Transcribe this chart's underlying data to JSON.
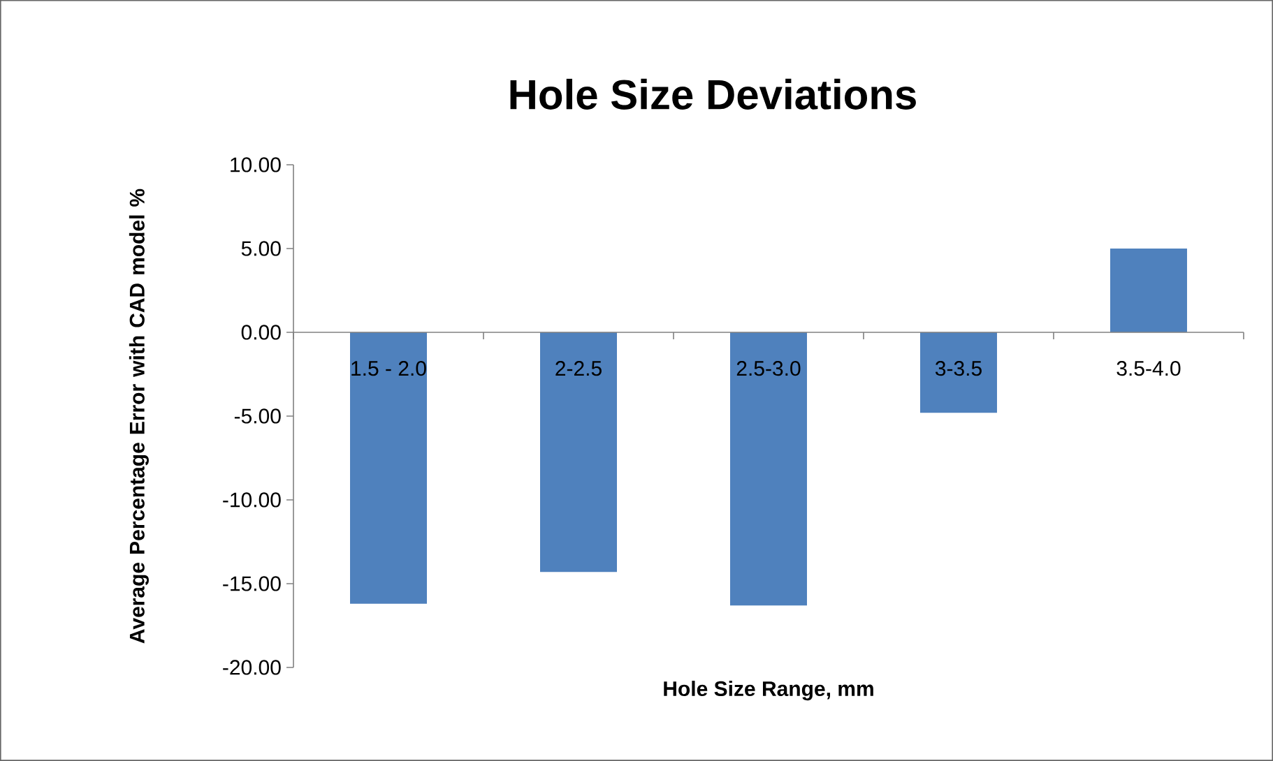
{
  "chart_data": {
    "type": "bar",
    "title": "Hole Size Deviations",
    "xlabel": "Hole Size Range, mm",
    "ylabel": "Average Percentage Error with CAD model %",
    "categories": [
      "1.5 - 2.0",
      "2-2.5",
      "2.5-3.0",
      "3-3.5",
      "3.5-4.0"
    ],
    "values": [
      -16.2,
      -14.3,
      -16.3,
      -4.8,
      5.0
    ],
    "color": "#4f81bd",
    "ylim": [
      -20,
      10
    ],
    "yticks": [
      {
        "value": -20,
        "label": "-20.00"
      },
      {
        "value": -15,
        "label": "-15.00"
      },
      {
        "value": -10,
        "label": "-10.00"
      },
      {
        "value": -5,
        "label": "-5.00"
      },
      {
        "value": 0,
        "label": "0.00"
      },
      {
        "value": 5,
        "label": "5.00"
      },
      {
        "value": 10,
        "label": "10.00"
      }
    ]
  }
}
